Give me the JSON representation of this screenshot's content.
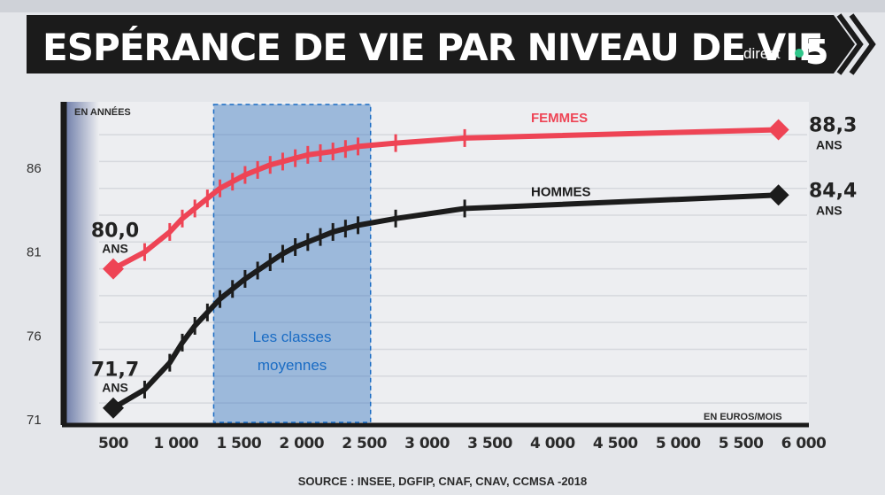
{
  "banner": {
    "title": "ESPÉRANCE DE VIE PAR NIVEAU DE VIE",
    "brand_text": "direct",
    "brand_number": "5"
  },
  "chart_data": {
    "type": "line",
    "title": "ESPÉRANCE DE VIE PAR NIVEAU DE VIE",
    "ylabel": "EN ANNÉES",
    "xlabel": "EN EUROS/MOIS",
    "ylim": [
      71,
      89
    ],
    "xlim": [
      0,
      6000
    ],
    "yticks": [
      71,
      76,
      81,
      86
    ],
    "xticks": [
      500,
      1000,
      1500,
      2000,
      2500,
      3000,
      3500,
      4000,
      4500,
      5000,
      5500,
      6000
    ],
    "grid": true,
    "series": [
      {
        "name": "FEMMES",
        "color": "#ee4455",
        "x": [
          500,
          750,
          950,
          1050,
          1150,
          1250,
          1350,
          1450,
          1550,
          1650,
          1750,
          1850,
          1950,
          2050,
          2150,
          2250,
          2350,
          2450,
          2750,
          3300,
          5800
        ],
        "y": [
          80.0,
          81.0,
          82.2,
          83.0,
          83.6,
          84.2,
          84.8,
          85.2,
          85.6,
          85.9,
          86.2,
          86.4,
          86.6,
          86.8,
          86.9,
          87.0,
          87.15,
          87.3,
          87.5,
          87.8,
          88.3
        ],
        "end_label": "88,3",
        "start_label": "80,0",
        "unit_label": "ANS"
      },
      {
        "name": "HOMMES",
        "color": "#1c1c1c",
        "x": [
          500,
          750,
          950,
          1050,
          1150,
          1250,
          1350,
          1450,
          1550,
          1650,
          1750,
          1850,
          1950,
          2050,
          2150,
          2250,
          2350,
          2450,
          2750,
          3300,
          5800
        ],
        "y": [
          71.7,
          72.8,
          74.4,
          75.6,
          76.6,
          77.4,
          78.2,
          78.8,
          79.4,
          79.9,
          80.4,
          80.9,
          81.3,
          81.6,
          81.9,
          82.2,
          82.4,
          82.6,
          83.0,
          83.6,
          84.4
        ],
        "end_label": "84,4",
        "start_label": "71,7",
        "unit_label": "ANS"
      }
    ],
    "highlight": {
      "x_range": [
        1300,
        2550
      ],
      "label_line1": "Les classes",
      "label_line2": "moyennes",
      "color": "#3a78c2"
    },
    "source": "SOURCE : INSEE, DGFIP, CNAF, CNAV, CCMSA -2018"
  }
}
